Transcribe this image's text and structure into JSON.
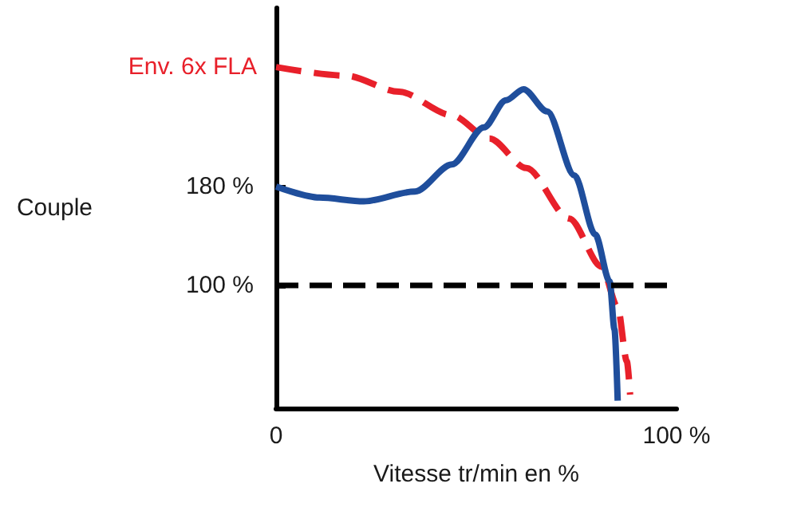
{
  "chart_data": {
    "type": "line",
    "xlabel": "Vitesse tr/min en %",
    "ylabel": "Couple",
    "annotations": [
      {
        "text": "Env. 6x FLA",
        "x": 0,
        "y": 277
      }
    ],
    "xlim": [
      0,
      100
    ],
    "xticks": [
      0,
      {
        "value": 100,
        "label": "100 %"
      }
    ],
    "ylim": [
      0,
      325
    ],
    "yticks": [
      {
        "value": 100,
        "label": "100 %"
      },
      {
        "value": 180,
        "label": "180 %"
      }
    ],
    "marker": "none",
    "ref_lines": [
      {
        "axis": "y",
        "value": 100,
        "color": "#000000",
        "line_style": "dashed"
      }
    ],
    "series": [
      {
        "color": "#e8202a",
        "line_style": "dashed",
        "x": [
          0,
          17.5,
          30.7,
          43.8,
          53.3,
          62.5,
          73.2,
          81.3,
          85.3,
          87.6,
          88.4
        ],
        "values": [
          277,
          270,
          257,
          238,
          219,
          195,
          154,
          115,
          82,
          38,
          11
        ]
      },
      {
        "color": "#1f4e9c",
        "line_style": "solid",
        "x": [
          0,
          10.8,
          21.9,
          34.7,
          43.9,
          51.9,
          57.4,
          61.8,
          67.7,
          74.5,
          79.7,
          83.3,
          84.5,
          85.3
        ],
        "values": [
          180,
          171,
          168,
          176,
          198,
          228,
          250,
          259,
          241,
          189,
          141,
          103,
          64,
          6
        ]
      }
    ]
  }
}
